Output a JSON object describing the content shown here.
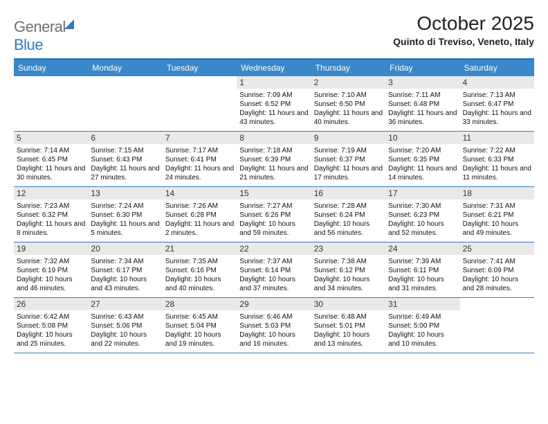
{
  "brand": {
    "part1": "General",
    "part2": "Blue"
  },
  "title": "October 2025",
  "location": "Quinto di Treviso, Veneto, Italy",
  "colors": {
    "accent": "#2f7bbf",
    "header_bg": "#3a87c9",
    "daynum_bg": "#e9e9e9",
    "text": "#111111",
    "grey": "#6f6f6f"
  },
  "type": "calendar-table",
  "day_names": [
    "Sunday",
    "Monday",
    "Tuesday",
    "Wednesday",
    "Thursday",
    "Friday",
    "Saturday"
  ],
  "weeks": [
    [
      {
        "n": "",
        "sr": "",
        "ss": "",
        "dl": ""
      },
      {
        "n": "",
        "sr": "",
        "ss": "",
        "dl": ""
      },
      {
        "n": "",
        "sr": "",
        "ss": "",
        "dl": ""
      },
      {
        "n": "1",
        "sr": "Sunrise: 7:09 AM",
        "ss": "Sunset: 6:52 PM",
        "dl": "Daylight: 11 hours and 43 minutes."
      },
      {
        "n": "2",
        "sr": "Sunrise: 7:10 AM",
        "ss": "Sunset: 6:50 PM",
        "dl": "Daylight: 11 hours and 40 minutes."
      },
      {
        "n": "3",
        "sr": "Sunrise: 7:11 AM",
        "ss": "Sunset: 6:48 PM",
        "dl": "Daylight: 11 hours and 36 minutes."
      },
      {
        "n": "4",
        "sr": "Sunrise: 7:13 AM",
        "ss": "Sunset: 6:47 PM",
        "dl": "Daylight: 11 hours and 33 minutes."
      }
    ],
    [
      {
        "n": "5",
        "sr": "Sunrise: 7:14 AM",
        "ss": "Sunset: 6:45 PM",
        "dl": "Daylight: 11 hours and 30 minutes."
      },
      {
        "n": "6",
        "sr": "Sunrise: 7:15 AM",
        "ss": "Sunset: 6:43 PM",
        "dl": "Daylight: 11 hours and 27 minutes."
      },
      {
        "n": "7",
        "sr": "Sunrise: 7:17 AM",
        "ss": "Sunset: 6:41 PM",
        "dl": "Daylight: 11 hours and 24 minutes."
      },
      {
        "n": "8",
        "sr": "Sunrise: 7:18 AM",
        "ss": "Sunset: 6:39 PM",
        "dl": "Daylight: 11 hours and 21 minutes."
      },
      {
        "n": "9",
        "sr": "Sunrise: 7:19 AM",
        "ss": "Sunset: 6:37 PM",
        "dl": "Daylight: 11 hours and 17 minutes."
      },
      {
        "n": "10",
        "sr": "Sunrise: 7:20 AM",
        "ss": "Sunset: 6:35 PM",
        "dl": "Daylight: 11 hours and 14 minutes."
      },
      {
        "n": "11",
        "sr": "Sunrise: 7:22 AM",
        "ss": "Sunset: 6:33 PM",
        "dl": "Daylight: 11 hours and 11 minutes."
      }
    ],
    [
      {
        "n": "12",
        "sr": "Sunrise: 7:23 AM",
        "ss": "Sunset: 6:32 PM",
        "dl": "Daylight: 11 hours and 8 minutes."
      },
      {
        "n": "13",
        "sr": "Sunrise: 7:24 AM",
        "ss": "Sunset: 6:30 PM",
        "dl": "Daylight: 11 hours and 5 minutes."
      },
      {
        "n": "14",
        "sr": "Sunrise: 7:26 AM",
        "ss": "Sunset: 6:28 PM",
        "dl": "Daylight: 11 hours and 2 minutes."
      },
      {
        "n": "15",
        "sr": "Sunrise: 7:27 AM",
        "ss": "Sunset: 6:26 PM",
        "dl": "Daylight: 10 hours and 59 minutes."
      },
      {
        "n": "16",
        "sr": "Sunrise: 7:28 AM",
        "ss": "Sunset: 6:24 PM",
        "dl": "Daylight: 10 hours and 56 minutes."
      },
      {
        "n": "17",
        "sr": "Sunrise: 7:30 AM",
        "ss": "Sunset: 6:23 PM",
        "dl": "Daylight: 10 hours and 52 minutes."
      },
      {
        "n": "18",
        "sr": "Sunrise: 7:31 AM",
        "ss": "Sunset: 6:21 PM",
        "dl": "Daylight: 10 hours and 49 minutes."
      }
    ],
    [
      {
        "n": "19",
        "sr": "Sunrise: 7:32 AM",
        "ss": "Sunset: 6:19 PM",
        "dl": "Daylight: 10 hours and 46 minutes."
      },
      {
        "n": "20",
        "sr": "Sunrise: 7:34 AM",
        "ss": "Sunset: 6:17 PM",
        "dl": "Daylight: 10 hours and 43 minutes."
      },
      {
        "n": "21",
        "sr": "Sunrise: 7:35 AM",
        "ss": "Sunset: 6:16 PM",
        "dl": "Daylight: 10 hours and 40 minutes."
      },
      {
        "n": "22",
        "sr": "Sunrise: 7:37 AM",
        "ss": "Sunset: 6:14 PM",
        "dl": "Daylight: 10 hours and 37 minutes."
      },
      {
        "n": "23",
        "sr": "Sunrise: 7:38 AM",
        "ss": "Sunset: 6:12 PM",
        "dl": "Daylight: 10 hours and 34 minutes."
      },
      {
        "n": "24",
        "sr": "Sunrise: 7:39 AM",
        "ss": "Sunset: 6:11 PM",
        "dl": "Daylight: 10 hours and 31 minutes."
      },
      {
        "n": "25",
        "sr": "Sunrise: 7:41 AM",
        "ss": "Sunset: 6:09 PM",
        "dl": "Daylight: 10 hours and 28 minutes."
      }
    ],
    [
      {
        "n": "26",
        "sr": "Sunrise: 6:42 AM",
        "ss": "Sunset: 5:08 PM",
        "dl": "Daylight: 10 hours and 25 minutes."
      },
      {
        "n": "27",
        "sr": "Sunrise: 6:43 AM",
        "ss": "Sunset: 5:06 PM",
        "dl": "Daylight: 10 hours and 22 minutes."
      },
      {
        "n": "28",
        "sr": "Sunrise: 6:45 AM",
        "ss": "Sunset: 5:04 PM",
        "dl": "Daylight: 10 hours and 19 minutes."
      },
      {
        "n": "29",
        "sr": "Sunrise: 6:46 AM",
        "ss": "Sunset: 5:03 PM",
        "dl": "Daylight: 10 hours and 16 minutes."
      },
      {
        "n": "30",
        "sr": "Sunrise: 6:48 AM",
        "ss": "Sunset: 5:01 PM",
        "dl": "Daylight: 10 hours and 13 minutes."
      },
      {
        "n": "31",
        "sr": "Sunrise: 6:49 AM",
        "ss": "Sunset: 5:00 PM",
        "dl": "Daylight: 10 hours and 10 minutes."
      },
      {
        "n": "",
        "sr": "",
        "ss": "",
        "dl": ""
      }
    ]
  ]
}
